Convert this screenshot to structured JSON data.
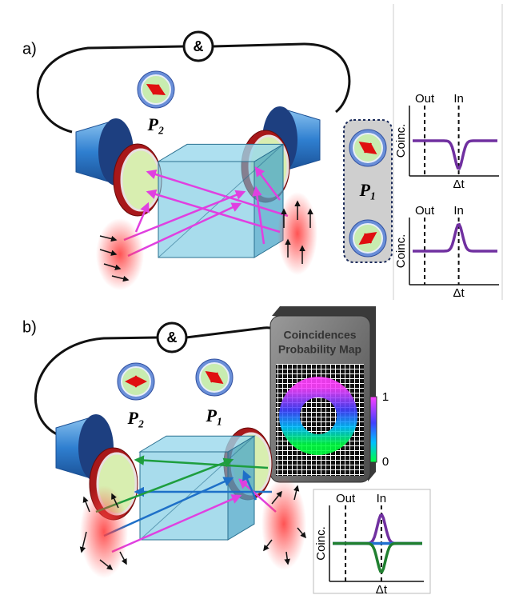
{
  "panel_a": {
    "label": "a)",
    "coincidence_symbol": "&",
    "polarizer_2": "P₂",
    "polarizer_1": "P₁",
    "plots": [
      {
        "out": "Out",
        "in": "In",
        "y_label": "Coinc.",
        "x_label": "Δt"
      },
      {
        "out": "Out",
        "in": "In",
        "y_label": "Coinc.",
        "x_label": "Δt"
      }
    ]
  },
  "panel_b": {
    "label": "b)",
    "coincidence_symbol": "&",
    "polarizer_2": "P₂",
    "polarizer_1": "P₁",
    "map_title": [
      "Coincidences",
      "Probability Map"
    ],
    "colorbar_max": "1",
    "colorbar_min": "0",
    "plot": {
      "out": "Out",
      "in": "In",
      "y_label": "Coinc.",
      "x_label": "Δt"
    }
  }
}
